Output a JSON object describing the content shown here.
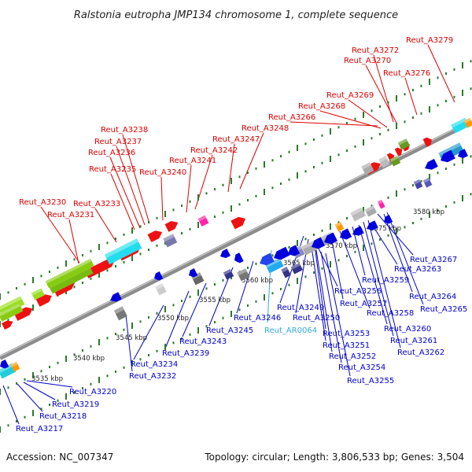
{
  "title": "Ralstonia eutropha JMP134 chromosome 1, complete sequence",
  "accession": "Accession: NC_007347",
  "summary": "Topology: circular; Length: 3,806,533 bp; Genes: 3,504",
  "colors": {
    "forward_label": "#dd0000",
    "reverse_label": "#0000cc",
    "rna_label": "#33aadd",
    "backbone": "#8c8c8c",
    "tick": "#2a7a2a"
  },
  "kbp_ticks": [
    "3535 kbp",
    "3540 kbp",
    "3545 kbp",
    "3550 kbp",
    "3555 kbp",
    "3560 kbp",
    "3565 kbp",
    "3570 kbp",
    "3575 kbp",
    "3580 kbp"
  ],
  "forward_genes": [
    "Reut_A3230",
    "Reut_A3231",
    "Reut_A3233",
    "Reut_A3235",
    "Reut_A3236",
    "Reut_A3237",
    "Reut_A3238",
    "Reut_A3240",
    "Reut_A3241",
    "Reut_A3242",
    "Reut_A3247",
    "Reut_A3248",
    "Reut_A3266",
    "Reut_A3268",
    "Reut_A3269",
    "Reut_A3270",
    "Reut_A3272",
    "Reut_A3276",
    "Reut_A3279"
  ],
  "reverse_genes": [
    "Reut_A3217",
    "Reut_A3218",
    "Reut_A3219",
    "Reut_A3220",
    "Reut_A3232",
    "Reut_A3234",
    "Reut_A3239",
    "Reut_A3243",
    "Reut_A3245",
    "Reut_A3246",
    "Reut_A3249",
    "Reut_A3250",
    "Reut_A3251",
    "Reut_A3252",
    "Reut_A3253",
    "Reut_A3254",
    "Reut_A3255",
    "Reut_A3256",
    "Reut_A3257",
    "Reut_A3258",
    "Reut_A3259",
    "Reut_A3260",
    "Reut_A3261",
    "Reut_A3262",
    "Reut_A3263",
    "Reut_A3264",
    "Reut_A3265",
    "Reut_A3267"
  ],
  "rna_genes": [
    "Reut_AR0064"
  ]
}
